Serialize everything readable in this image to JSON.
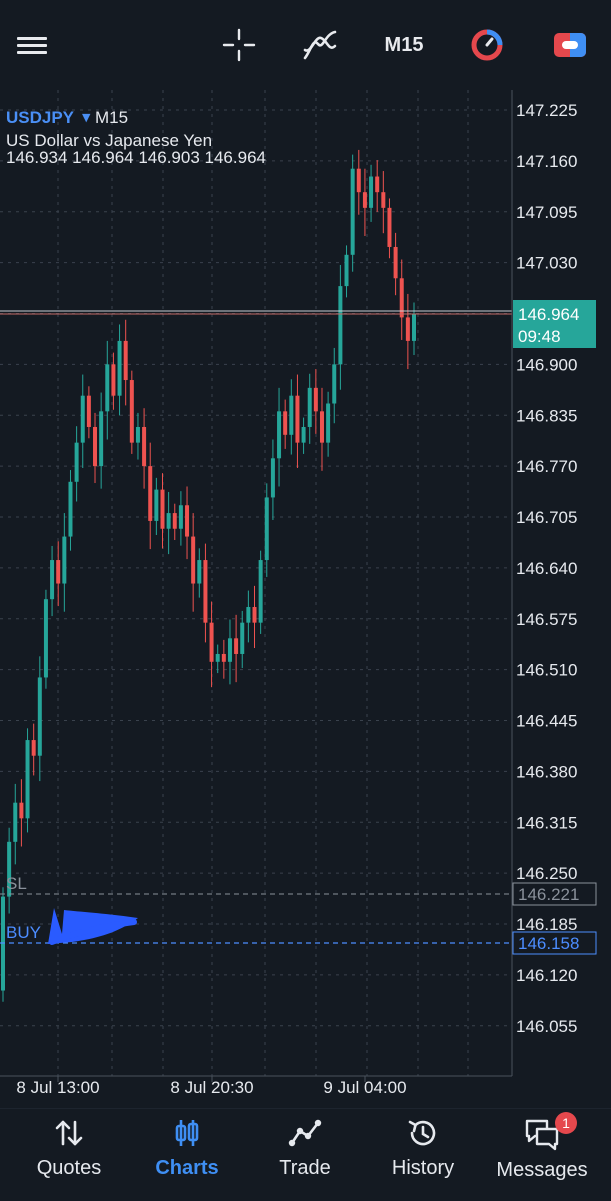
{
  "toolbar": {
    "timeframe": "M15",
    "icons": [
      "menu-icon",
      "crosshair-icon",
      "indicators-icon",
      "trade-clock-icon",
      "one-click-trading-icon"
    ]
  },
  "header": {
    "symbol": "USDJPY",
    "timeframe": "M15",
    "description": "US Dollar vs Japanese Yen",
    "ohlc": "146.934 146.964 146.903 146.964"
  },
  "price_tag": {
    "price": "146.964",
    "countdown": "09:48"
  },
  "levels": {
    "sl": {
      "label": "SL",
      "price": "146.221"
    },
    "buy": {
      "label": "BUY",
      "price": "146.158"
    }
  },
  "colors": {
    "bull": "#26a69a",
    "bear": "#ef5350",
    "buy_line": "#4c8dff",
    "tag": "#26a69a"
  },
  "chart_data": {
    "type": "candlestick",
    "y_axis_ticks": [
      "147.225",
      "147.160",
      "147.095",
      "147.030",
      "146.964",
      "146.900",
      "146.835",
      "146.770",
      "146.705",
      "146.640",
      "146.575",
      "146.510",
      "146.445",
      "146.380",
      "146.315",
      "146.250",
      "146.185",
      "146.120",
      "146.055"
    ],
    "x_axis_ticks": [
      "8 Jul 13:00",
      "8 Jul 20:30",
      "9 Jul 04:00"
    ],
    "ylim": [
      146.025,
      147.25
    ],
    "grid": true,
    "close": [
      146.22,
      146.29,
      146.34,
      146.32,
      146.42,
      146.4,
      146.5,
      146.6,
      146.65,
      146.62,
      146.68,
      146.75,
      146.8,
      146.86,
      146.82,
      146.77,
      146.84,
      146.9,
      146.86,
      146.93,
      146.88,
      146.8,
      146.82,
      146.77,
      146.7,
      146.74,
      146.69,
      146.71,
      146.69,
      146.72,
      146.68,
      146.62,
      146.65,
      146.57,
      146.52,
      146.53,
      146.52,
      146.55,
      146.53,
      146.57,
      146.59,
      146.57,
      146.65,
      146.73,
      146.78,
      146.84,
      146.81,
      146.86,
      146.8,
      146.82,
      146.87,
      146.84,
      146.8,
      146.85,
      146.9,
      147.0,
      147.04,
      147.15,
      147.12,
      147.1,
      147.14,
      147.12,
      147.1,
      147.05,
      147.01,
      146.96,
      146.93,
      146.964
    ]
  }
}
